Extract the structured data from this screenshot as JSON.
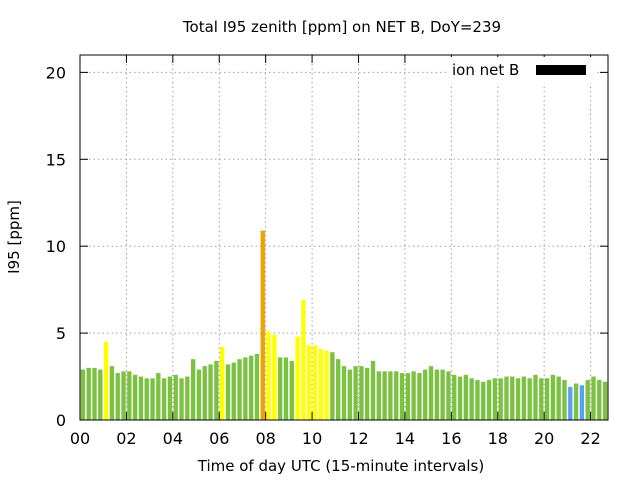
{
  "chart_data": {
    "type": "bar",
    "title": "Total I95 zenith [ppm] on NET B, DoY=239",
    "xlabel": "Time of day UTC (15-minute intervals)",
    "ylabel": "I95 [ppm]",
    "ylim": [
      0,
      21
    ],
    "xlim": [
      0,
      22.75
    ],
    "yticks": [
      0,
      5,
      10,
      15,
      20
    ],
    "ytick_labels": [
      "0",
      "5",
      "10",
      "15",
      "20"
    ],
    "xticks": [
      0,
      2,
      4,
      6,
      8,
      10,
      12,
      14,
      16,
      18,
      20,
      22
    ],
    "xtick_labels": [
      "00",
      "02",
      "04",
      "06",
      "08",
      "10",
      "12",
      "14",
      "16",
      "18",
      "20",
      "22"
    ],
    "grid": true,
    "legend": {
      "label": "ion net B",
      "position": "top-right",
      "color": "#000000"
    },
    "bar_interval_hours": 0.25,
    "colors": {
      "green": "#7cc242",
      "yellow": "#ffff00",
      "orange": "#f0a000",
      "blue": "#5aa0f0"
    },
    "values": [
      2.9,
      3.0,
      3.0,
      2.9,
      4.5,
      3.1,
      2.7,
      2.8,
      2.8,
      2.6,
      2.5,
      2.4,
      2.4,
      2.7,
      2.4,
      2.5,
      2.6,
      2.4,
      2.5,
      3.5,
      2.9,
      3.1,
      3.2,
      3.4,
      4.2,
      3.2,
      3.3,
      3.5,
      3.6,
      3.7,
      3.8,
      10.9,
      5.1,
      4.9,
      3.6,
      3.6,
      3.4,
      4.8,
      6.9,
      4.3,
      4.3,
      4.1,
      4.0,
      3.9,
      3.5,
      3.1,
      2.9,
      3.1,
      3.1,
      3.0,
      3.4,
      2.8,
      2.8,
      2.8,
      2.8,
      2.7,
      2.7,
      2.8,
      2.7,
      2.9,
      3.1,
      2.9,
      2.9,
      2.8,
      2.6,
      2.5,
      2.6,
      2.4,
      2.3,
      2.2,
      2.3,
      2.4,
      2.4,
      2.5,
      2.5,
      2.4,
      2.5,
      2.4,
      2.6,
      2.4,
      2.4,
      2.6,
      2.5,
      2.3,
      1.9,
      2.1,
      2.0,
      2.3,
      2.5,
      2.3,
      2.2
    ],
    "bar_colors": [
      "green",
      "green",
      "green",
      "green",
      "yellow",
      "green",
      "green",
      "green",
      "green",
      "green",
      "green",
      "green",
      "green",
      "green",
      "green",
      "green",
      "green",
      "green",
      "green",
      "green",
      "green",
      "green",
      "green",
      "green",
      "yellow",
      "green",
      "green",
      "green",
      "green",
      "green",
      "green",
      "orange",
      "yellow",
      "yellow",
      "green",
      "green",
      "green",
      "yellow",
      "yellow",
      "yellow",
      "yellow",
      "yellow",
      "yellow",
      "green",
      "green",
      "green",
      "green",
      "green",
      "green",
      "green",
      "green",
      "green",
      "green",
      "green",
      "green",
      "green",
      "green",
      "green",
      "green",
      "green",
      "green",
      "green",
      "green",
      "green",
      "green",
      "green",
      "green",
      "green",
      "green",
      "green",
      "green",
      "green",
      "green",
      "green",
      "green",
      "green",
      "green",
      "green",
      "green",
      "green",
      "green",
      "green",
      "green",
      "green",
      "blue",
      "green",
      "blue",
      "green",
      "green",
      "green",
      "green"
    ]
  }
}
